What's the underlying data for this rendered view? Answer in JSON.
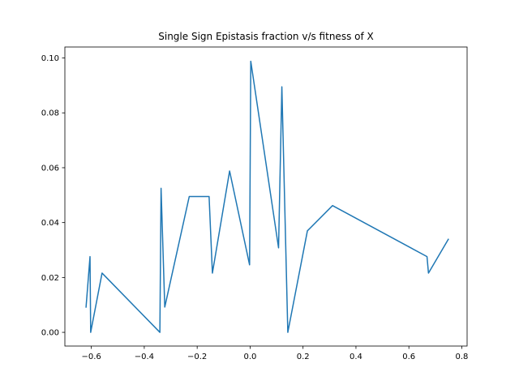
{
  "chart_data": {
    "type": "line",
    "title": "Single Sign Epistasis fraction v/s fitness of X",
    "xlabel": "",
    "ylabel": "",
    "xlim": [
      -0.7,
      0.82
    ],
    "ylim": [
      -0.005,
      0.104
    ],
    "grid": false,
    "x_ticks": [
      -0.6,
      -0.4,
      -0.2,
      0.0,
      0.2,
      0.4,
      0.6,
      0.8
    ],
    "x_tick_labels": [
      "−0.6",
      "−0.4",
      "−0.2",
      "0.0",
      "0.2",
      "0.4",
      "0.6",
      "0.8"
    ],
    "y_ticks": [
      0.0,
      0.02,
      0.04,
      0.06,
      0.08,
      0.1
    ],
    "y_tick_labels": [
      "0.00",
      "0.02",
      "0.04",
      "0.06",
      "0.08",
      "0.10"
    ],
    "series": [
      {
        "color": "#1f77b4",
        "points": [
          [
            -0.62,
            0.0092
          ],
          [
            -0.605,
            0.0276
          ],
          [
            -0.6025,
            0.0
          ],
          [
            -0.5595,
            0.0216
          ],
          [
            -0.341,
            0.0
          ],
          [
            -0.3365,
            0.0525
          ],
          [
            -0.3225,
            0.0092
          ],
          [
            -0.23,
            0.0495
          ],
          [
            -0.155,
            0.0495
          ],
          [
            -0.1425,
            0.0216
          ],
          [
            -0.0775,
            0.0588
          ],
          [
            -0.002,
            0.0246
          ],
          [
            0.0025,
            0.0988
          ],
          [
            0.1075,
            0.0308
          ],
          [
            0.12,
            0.0895
          ],
          [
            0.1425,
            0.0
          ],
          [
            0.2165,
            0.037
          ],
          [
            0.3115,
            0.0462
          ],
          [
            0.6685,
            0.0276
          ],
          [
            0.674,
            0.0216
          ],
          [
            0.749,
            0.0339
          ]
        ]
      }
    ]
  }
}
